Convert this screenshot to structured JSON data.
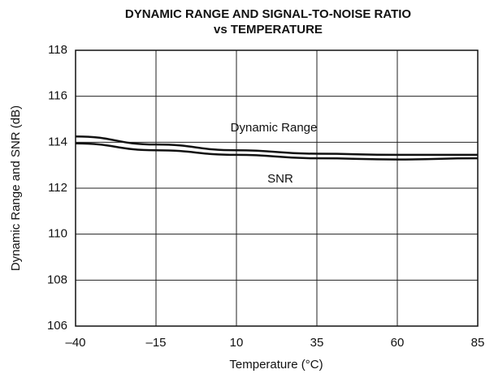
{
  "chart_data": {
    "type": "line",
    "title": [
      "DYNAMIC RANGE AND SIGNAL-TO-NOISE RATIO",
      "vs TEMPERATURE"
    ],
    "x_label": "Temperature (°C)",
    "y_label": "Dynamic Range and SNR (dB)",
    "x": [
      -40,
      -15,
      10,
      35,
      60,
      85
    ],
    "series": [
      {
        "name": "Dynamic Range",
        "color": "#111111",
        "values": [
          114.25,
          113.9,
          113.65,
          113.5,
          113.45,
          113.45
        ]
      },
      {
        "name": "SNR",
        "color": "#111111",
        "values": [
          113.95,
          113.65,
          113.45,
          113.3,
          113.25,
          113.3
        ]
      }
    ],
    "xlim": [
      -40,
      85
    ],
    "xticks": [
      {
        "value": -40,
        "label": "–40"
      },
      {
        "value": -15,
        "label": "–15"
      },
      10,
      35,
      60,
      85
    ],
    "ylim": [
      106,
      118
    ],
    "yticks": [
      106,
      108,
      110,
      112,
      114,
      116,
      118
    ],
    "grid": true
  }
}
